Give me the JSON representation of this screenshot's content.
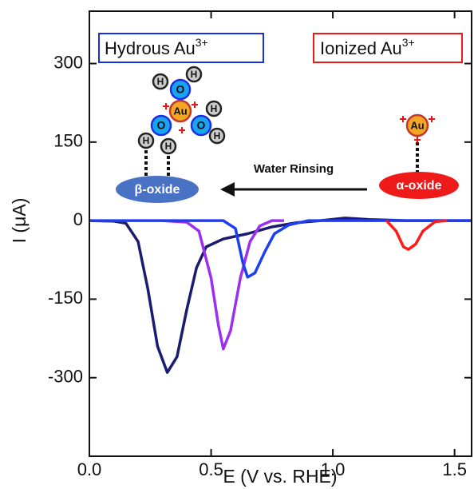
{
  "chart_data": {
    "type": "line",
    "xlabel": "E (V vs. RHE)",
    "ylabel": "I (μA)",
    "xlim": [
      0,
      1.57
    ],
    "ylim": [
      -450,
      400
    ],
    "xticks": [
      {
        "value": 0,
        "label": "0.0"
      },
      0.5,
      {
        "value": 1,
        "label": "1.0"
      },
      1.5
    ],
    "yticks": [
      300,
      150,
      0,
      -150,
      -300
    ],
    "series": [
      {
        "color": "#1b1b6f",
        "x": [
          0,
          0.1,
          0.15,
          0.2,
          0.24,
          0.28,
          0.32,
          0.36,
          0.4,
          0.44,
          0.48,
          0.55,
          0.65,
          0.75,
          0.85,
          0.95,
          1.05,
          1.15,
          1.3,
          1.45,
          1.57
        ],
        "values": [
          0,
          -1,
          -5,
          -40,
          -130,
          -240,
          -290,
          -260,
          -170,
          -90,
          -50,
          -35,
          -25,
          -12,
          -4,
          0,
          5,
          2,
          0,
          0,
          0
        ]
      },
      {
        "color": "#9b30f0",
        "x": [
          0.3,
          0.4,
          0.45,
          0.5,
          0.53,
          0.55,
          0.58,
          0.62,
          0.66,
          0.7,
          0.75,
          0.8
        ],
        "values": [
          0,
          -3,
          -20,
          -110,
          -200,
          -245,
          -210,
          -110,
          -40,
          -10,
          0,
          0
        ]
      },
      {
        "color": "#1f3ef2",
        "x": [
          0,
          0.3,
          0.55,
          0.6,
          0.63,
          0.65,
          0.68,
          0.72,
          0.76,
          0.82,
          0.9,
          1.0,
          1.2,
          1.4,
          1.57
        ],
        "values": [
          0,
          0,
          0,
          -15,
          -80,
          -108,
          -100,
          -60,
          -25,
          -8,
          0,
          0,
          0,
          0,
          0
        ]
      },
      {
        "color": "#ff1a1a",
        "x": [
          1.22,
          1.26,
          1.29,
          1.31,
          1.34,
          1.37,
          1.42,
          1.47
        ],
        "values": [
          0,
          -20,
          -50,
          -55,
          -45,
          -20,
          -2,
          0
        ]
      }
    ],
    "annotations": {
      "hydrous": {
        "text": "Hydrous Au",
        "sup": "3+"
      },
      "ionized": {
        "text": "Ionized Au",
        "sup": "3+"
      },
      "arrow_label": "Water Rinsing",
      "beta": "β-oxide",
      "alpha": "α-oxide",
      "molecule_atoms": [
        "H",
        "H",
        "O",
        "Au",
        "O",
        "O",
        "H",
        "H",
        "H",
        "H"
      ],
      "ion_atom": "Au"
    }
  }
}
